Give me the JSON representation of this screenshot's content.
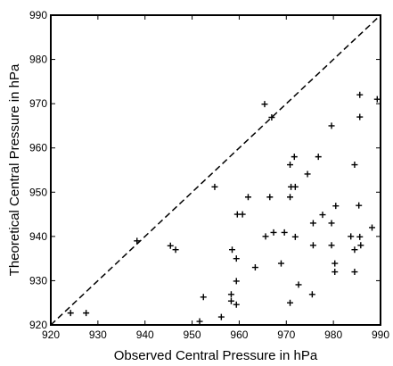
{
  "chart_data": {
    "type": "scatter",
    "title": "",
    "xlabel": "Observed Central Pressure in hPa",
    "ylabel": "Theoretical Central Pressure in hPa",
    "xlim": [
      920,
      990
    ],
    "ylim": [
      920,
      990
    ],
    "xticks": [
      920,
      930,
      940,
      950,
      960,
      970,
      980,
      990
    ],
    "yticks": [
      920,
      930,
      940,
      950,
      960,
      970,
      980,
      990
    ],
    "grid": false,
    "marker": "+",
    "reference_line": {
      "style": "dashed",
      "from": [
        920,
        920
      ],
      "to": [
        990,
        990
      ]
    },
    "series": [
      {
        "points": [
          [
            924.2,
            922.7
          ],
          [
            927.5,
            922.7
          ],
          [
            938.3,
            939.0
          ],
          [
            945.4,
            937.9
          ],
          [
            946.5,
            937.0
          ],
          [
            951.6,
            920.8
          ],
          [
            952.4,
            926.3
          ],
          [
            954.8,
            951.2
          ],
          [
            956.2,
            921.8
          ],
          [
            958.3,
            926.9
          ],
          [
            958.3,
            925.4
          ],
          [
            958.5,
            937.0
          ],
          [
            959.4,
            935.0
          ],
          [
            959.4,
            924.6
          ],
          [
            959.4,
            929.9
          ],
          [
            959.6,
            945.0
          ],
          [
            960.7,
            945.0
          ],
          [
            961.9,
            948.9
          ],
          [
            963.4,
            933.0
          ],
          [
            965.4,
            969.9
          ],
          [
            965.6,
            940.0
          ],
          [
            966.5,
            948.9
          ],
          [
            966.9,
            966.9
          ],
          [
            967.3,
            940.9
          ],
          [
            968.9,
            933.9
          ],
          [
            969.6,
            940.9
          ],
          [
            970.8,
            948.9
          ],
          [
            970.8,
            956.2
          ],
          [
            970.8,
            925.0
          ],
          [
            971.0,
            951.2
          ],
          [
            971.7,
            958.0
          ],
          [
            971.9,
            951.2
          ],
          [
            971.9,
            939.9
          ],
          [
            972.6,
            929.1
          ],
          [
            974.5,
            954.1
          ],
          [
            975.5,
            926.9
          ],
          [
            975.7,
            943.0
          ],
          [
            975.7,
            938.0
          ],
          [
            976.8,
            958.0
          ],
          [
            977.7,
            944.9
          ],
          [
            979.6,
            965.0
          ],
          [
            979.6,
            943.0
          ],
          [
            979.6,
            938.0
          ],
          [
            980.3,
            932.0
          ],
          [
            980.3,
            933.9
          ],
          [
            980.5,
            946.9
          ],
          [
            983.7,
            940.0
          ],
          [
            984.5,
            956.2
          ],
          [
            984.5,
            932.0
          ],
          [
            984.5,
            937.0
          ],
          [
            985.4,
            947.0
          ],
          [
            985.6,
            972.0
          ],
          [
            985.6,
            967.0
          ],
          [
            985.6,
            939.9
          ],
          [
            985.8,
            938.0
          ],
          [
            988.2,
            942.0
          ],
          [
            989.3,
            971.0
          ]
        ]
      }
    ]
  }
}
